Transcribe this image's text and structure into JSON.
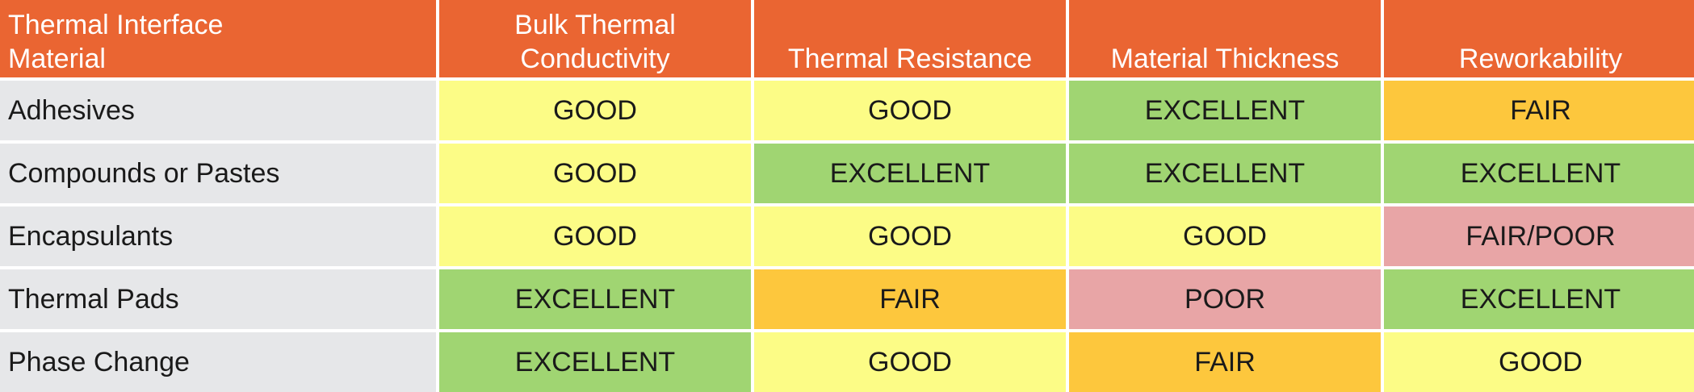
{
  "header": {
    "material_col_line1": "Thermal Interface",
    "material_col_line2": "Material",
    "columns": [
      {
        "line1": "Bulk Thermal",
        "line2": "Conductivity"
      },
      {
        "line1": "",
        "line2": "Thermal Resistance"
      },
      {
        "line1": "",
        "line2": "Material Thickness"
      },
      {
        "line1": "",
        "line2": "Reworkability"
      }
    ]
  },
  "rows": [
    {
      "material": "Adhesives",
      "values": [
        "GOOD",
        "GOOD",
        "EXCELLENT",
        "FAIR"
      ]
    },
    {
      "material": "Compounds or Pastes",
      "values": [
        "GOOD",
        "EXCELLENT",
        "EXCELLENT",
        "EXCELLENT"
      ]
    },
    {
      "material": "Encapsulants",
      "values": [
        "GOOD",
        "GOOD",
        "GOOD",
        "FAIR/POOR"
      ]
    },
    {
      "material": "Thermal Pads",
      "values": [
        "EXCELLENT",
        "FAIR",
        "POOR",
        "EXCELLENT"
      ]
    },
    {
      "material": "Phase Change",
      "values": [
        "EXCELLENT",
        "GOOD",
        "FAIR",
        "GOOD"
      ]
    }
  ],
  "colors": {
    "header_bg": "#ea6532",
    "label_bg": "#e6e7e9",
    "excellent": "#a0d572",
    "good": "#fcfc86",
    "fair": "#fdc73d",
    "poor": "#e8a5a6"
  }
}
